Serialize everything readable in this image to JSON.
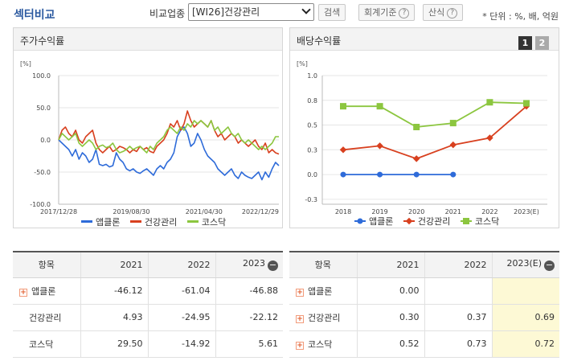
{
  "header": {
    "title": "섹터비교",
    "compare_label": "비교업종",
    "select_value": "[WI26]건강관리",
    "search_btn": "검색",
    "basis_btn": "회계기준",
    "formula_btn": "산식",
    "help_glyph": "?",
    "unit_note": "* 단위 : %, 배, 억원"
  },
  "left_panel": {
    "title": "주가수익률",
    "yunit": "[%]"
  },
  "right_panel": {
    "title": "배당수익률",
    "yunit": "[%]",
    "page1": "1",
    "page2": "2"
  },
  "colors": {
    "applclone": "#2e6bd9",
    "health": "#d8401f",
    "kosdaq": "#8cc63f"
  },
  "legend": {
    "s1": "앱클론",
    "s2": "건강관리",
    "s3": "코스닥"
  },
  "chart_data": [
    {
      "type": "line",
      "title": "주가수익률",
      "ylabel": "[%]",
      "ylim": [
        -100,
        100
      ],
      "yticks": [
        "100.0",
        "50.0",
        "0.0",
        "-50.0",
        "-100.0"
      ],
      "xticks": [
        "2017/12/28",
        "2019/08/30",
        "2021/04/30",
        "2022/12/29"
      ],
      "x_range": [
        "2017/12/28",
        "2022/12/29"
      ],
      "legend_position": "bottom",
      "series": [
        {
          "name": "앱클론",
          "values": [
            0,
            -5,
            -10,
            -15,
            -25,
            -15,
            -30,
            -20,
            -25,
            -35,
            -30,
            -15,
            -38,
            -40,
            -38,
            -42,
            -40,
            -20,
            -30,
            -35,
            -45,
            -48,
            -45,
            -50,
            -52,
            -48,
            -45,
            -50,
            -55,
            -45,
            -40,
            -45,
            -35,
            -30,
            -20,
            5,
            15,
            20,
            10,
            -10,
            -5,
            10,
            0,
            -15,
            -25,
            -30,
            -35,
            -45,
            -50,
            -55,
            -50,
            -45,
            -55,
            -60,
            -50,
            -55,
            -58,
            -60,
            -55,
            -50,
            -62,
            -50,
            -58,
            -45,
            -35,
            -40
          ]
        },
        {
          "name": "건강관리",
          "values": [
            0,
            15,
            20,
            10,
            5,
            15,
            0,
            -5,
            5,
            10,
            15,
            -5,
            -15,
            -20,
            -15,
            -10,
            -18,
            -15,
            -10,
            -12,
            -15,
            -20,
            -15,
            -18,
            -10,
            -15,
            -12,
            -18,
            -20,
            -10,
            -5,
            0,
            10,
            25,
            20,
            30,
            15,
            25,
            45,
            30,
            20,
            25,
            30,
            25,
            20,
            30,
            15,
            5,
            10,
            0,
            5,
            10,
            5,
            -5,
            0,
            -5,
            -10,
            -5,
            0,
            -10,
            -15,
            -5,
            -20,
            -15,
            -20,
            -22
          ]
        },
        {
          "name": "코스닥",
          "values": [
            0,
            10,
            5,
            0,
            5,
            10,
            -5,
            -10,
            -5,
            0,
            -5,
            -15,
            -10,
            -8,
            -12,
            -10,
            -5,
            -15,
            -20,
            -18,
            -15,
            -10,
            -15,
            -12,
            -10,
            -15,
            -20,
            -10,
            -15,
            -5,
            0,
            5,
            15,
            20,
            15,
            10,
            20,
            15,
            25,
            20,
            30,
            25,
            30,
            25,
            20,
            30,
            15,
            20,
            10,
            15,
            20,
            10,
            5,
            10,
            0,
            -5,
            0,
            -5,
            -10,
            -15,
            -10,
            -15,
            -10,
            -5,
            5,
            5
          ]
        }
      ]
    },
    {
      "type": "line",
      "title": "배당수익률",
      "ylabel": "[%]",
      "ylim": [
        -0.3,
        1.0
      ],
      "yticks": [
        "1.0",
        "0.8",
        "0.5",
        "0.3",
        "0.0",
        "-0.3"
      ],
      "ytick_values": [
        1.0,
        0.75,
        0.5,
        0.25,
        0.0,
        -0.25
      ],
      "categories": [
        "2018",
        "2019",
        "2020",
        "2021",
        "2022",
        "2023(E)"
      ],
      "legend_position": "bottom",
      "series": [
        {
          "name": "앱클론",
          "values": [
            0.0,
            0.0,
            0.0,
            0.0,
            null,
            null
          ]
        },
        {
          "name": "건강관리",
          "values": [
            0.25,
            0.29,
            0.16,
            0.3,
            0.37,
            0.69
          ]
        },
        {
          "name": "코스닥",
          "values": [
            0.69,
            0.69,
            0.48,
            0.52,
            0.73,
            0.72
          ]
        }
      ]
    }
  ],
  "tables": {
    "left": {
      "h_item": "항목",
      "years": [
        "2021",
        "2022",
        "2023"
      ],
      "rows": [
        {
          "name": "앱클론",
          "plus": true,
          "vals": [
            "-46.12",
            "-61.04",
            "-46.88"
          ]
        },
        {
          "name": "건강관리",
          "plus": false,
          "vals": [
            "4.93",
            "-24.95",
            "-22.12"
          ]
        },
        {
          "name": "코스닥",
          "plus": false,
          "vals": [
            "29.50",
            "-14.92",
            "5.61"
          ]
        }
      ]
    },
    "right": {
      "h_item": "항목",
      "years": [
        "2021",
        "2022",
        "2023(E)"
      ],
      "rows": [
        {
          "name": "앱클론",
          "plus": true,
          "vals": [
            "0.00",
            "",
            ""
          ]
        },
        {
          "name": "건강관리",
          "plus": true,
          "vals": [
            "0.30",
            "0.37",
            "0.69"
          ]
        },
        {
          "name": "코스닥",
          "plus": true,
          "vals": [
            "0.52",
            "0.73",
            "0.72"
          ]
        }
      ]
    },
    "plus_glyph": "+",
    "minus_glyph": "−"
  }
}
